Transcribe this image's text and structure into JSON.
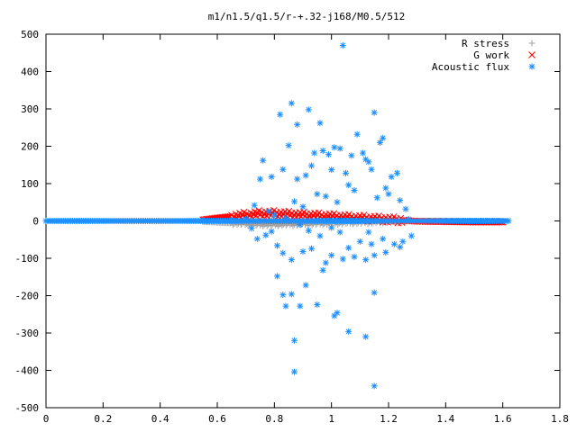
{
  "chart_data": {
    "type": "scatter",
    "title": "m1/n1.5/q1.5/r-+.32-j168/M0.5/512",
    "xlabel": "",
    "ylabel": "",
    "xlim": [
      0,
      1.8
    ],
    "ylim": [
      -500,
      500
    ],
    "x_ticks": [
      "0",
      "0.2",
      "0.4",
      "0.6",
      "0.8",
      "1",
      "1.2",
      "1.4",
      "1.6",
      "1.8"
    ],
    "y_ticks": [
      "500",
      "400",
      "300",
      "200",
      "100",
      "0",
      "-100",
      "-200",
      "-300",
      "-400",
      "-500"
    ],
    "grid": false,
    "legend_position": "top-right",
    "series": [
      {
        "name": "R stress",
        "marker": "plus",
        "color": "#a0a0a0",
        "points": [
          [
            0.55,
            -2
          ],
          [
            0.6,
            -4
          ],
          [
            0.65,
            -6
          ],
          [
            0.7,
            -8
          ],
          [
            0.75,
            -10
          ],
          [
            0.8,
            -10
          ],
          [
            0.85,
            -9
          ],
          [
            0.9,
            -8
          ],
          [
            0.95,
            -7
          ],
          [
            1.0,
            -6
          ],
          [
            1.05,
            -5
          ],
          [
            1.1,
            -4
          ],
          [
            1.15,
            -3
          ],
          [
            1.2,
            -2
          ],
          [
            1.25,
            -1
          ],
          [
            1.3,
            0
          ],
          [
            1.4,
            0
          ],
          [
            1.5,
            0
          ],
          [
            1.6,
            0
          ]
        ]
      },
      {
        "name": "G work",
        "marker": "x",
        "color": "#ff0000",
        "points": [
          [
            0.55,
            3
          ],
          [
            0.6,
            8
          ],
          [
            0.65,
            12
          ],
          [
            0.7,
            16
          ],
          [
            0.75,
            20
          ],
          [
            0.8,
            20
          ],
          [
            0.85,
            18
          ],
          [
            0.9,
            16
          ],
          [
            0.95,
            14
          ],
          [
            1.0,
            12
          ],
          [
            1.05,
            10
          ],
          [
            1.1,
            8
          ],
          [
            1.15,
            6
          ],
          [
            1.2,
            4
          ],
          [
            1.25,
            2
          ],
          [
            1.3,
            -1
          ],
          [
            1.4,
            -2
          ],
          [
            1.5,
            -3
          ],
          [
            1.6,
            -3
          ]
        ]
      },
      {
        "name": "Acoustic flux",
        "marker": "star",
        "color": "#1e8fff",
        "points": [
          [
            1.04,
            470
          ],
          [
            0.86,
            315
          ],
          [
            1.15,
            290
          ],
          [
            0.92,
            298
          ],
          [
            0.82,
            285
          ],
          [
            0.88,
            258
          ],
          [
            0.96,
            262
          ],
          [
            1.09,
            232
          ],
          [
            1.18,
            222
          ],
          [
            0.85,
            202
          ],
          [
            1.01,
            197
          ],
          [
            1.03,
            194
          ],
          [
            1.11,
            182
          ],
          [
            1.13,
            158
          ],
          [
            0.94,
            182
          ],
          [
            0.97,
            188
          ],
          [
            0.99,
            178
          ],
          [
            1.07,
            175
          ],
          [
            1.12,
            165
          ],
          [
            1.17,
            210
          ],
          [
            0.76,
            162
          ],
          [
            0.75,
            112
          ],
          [
            0.79,
            118
          ],
          [
            0.83,
            138
          ],
          [
            0.88,
            112
          ],
          [
            0.91,
            122
          ],
          [
            0.93,
            148
          ],
          [
            1.0,
            137
          ],
          [
            1.05,
            128
          ],
          [
            1.14,
            138
          ],
          [
            1.19,
            88
          ],
          [
            1.21,
            118
          ],
          [
            1.23,
            128
          ],
          [
            0.87,
            52
          ],
          [
            0.9,
            38
          ],
          [
            0.95,
            72
          ],
          [
            0.98,
            66
          ],
          [
            1.02,
            50
          ],
          [
            1.06,
            96
          ],
          [
            1.08,
            82
          ],
          [
            1.16,
            62
          ],
          [
            1.2,
            72
          ],
          [
            1.24,
            55
          ],
          [
            1.26,
            32
          ],
          [
            0.73,
            42
          ],
          [
            0.78,
            26
          ],
          [
            0.8,
            15
          ],
          [
            0.84,
            8
          ],
          [
            0.89,
            -10
          ],
          [
            0.92,
            -26
          ],
          [
            0.96,
            -40
          ],
          [
            1.0,
            -18
          ],
          [
            1.03,
            -30
          ],
          [
            1.06,
            -72
          ],
          [
            1.1,
            -55
          ],
          [
            1.14,
            -62
          ],
          [
            1.18,
            -48
          ],
          [
            1.22,
            -62
          ],
          [
            1.25,
            -55
          ],
          [
            1.28,
            -40
          ],
          [
            0.74,
            -48
          ],
          [
            0.77,
            -38
          ],
          [
            0.81,
            -66
          ],
          [
            0.83,
            -86
          ],
          [
            0.86,
            -104
          ],
          [
            0.9,
            -82
          ],
          [
            0.93,
            -74
          ],
          [
            0.97,
            -132
          ],
          [
            1.0,
            -92
          ],
          [
            1.04,
            -102
          ],
          [
            1.08,
            -96
          ],
          [
            1.12,
            -104
          ],
          [
            1.15,
            -92
          ],
          [
            1.19,
            -84
          ],
          [
            1.24,
            -70
          ],
          [
            0.81,
            -148
          ],
          [
            0.83,
            -198
          ],
          [
            0.86,
            -196
          ],
          [
            0.89,
            -228
          ],
          [
            0.91,
            -172
          ],
          [
            0.95,
            -224
          ],
          [
            1.01,
            -254
          ],
          [
            1.02,
            -246
          ],
          [
            1.06,
            -296
          ],
          [
            1.12,
            -310
          ],
          [
            1.15,
            -192
          ],
          [
            0.87,
            -320
          ],
          [
            0.87,
            -404
          ],
          [
            1.15,
            -442
          ],
          [
            0.84,
            -228
          ],
          [
            0.98,
            -112
          ],
          [
            1.13,
            -30
          ],
          [
            0.7,
            5
          ],
          [
            0.65,
            2
          ],
          [
            0.72,
            -20
          ],
          [
            0.79,
            -28
          ],
          [
            1.27,
            5
          ]
        ],
        "dense_band": {
          "x_range": [
            0,
            1.62
          ],
          "y_range": [
            -3,
            3
          ]
        }
      }
    ]
  }
}
